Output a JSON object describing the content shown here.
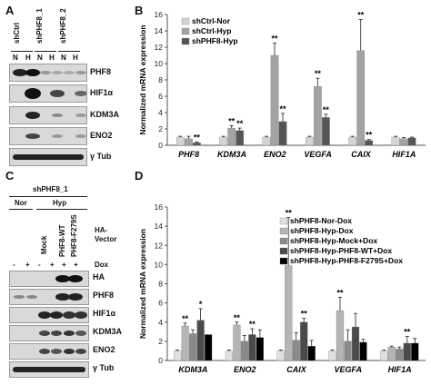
{
  "panels": {
    "a": "A",
    "b": "B",
    "c": "C",
    "d": "D"
  },
  "panel_a": {
    "groups": [
      "shCtrl",
      "shPHF8_1",
      "shPHF8_2"
    ],
    "lanes": [
      "N",
      "H",
      "N",
      "H",
      "N",
      "H"
    ],
    "blots": [
      "PHF8",
      "HIF1α",
      "KDM3A",
      "ENO2",
      "γ Tub"
    ]
  },
  "panel_c": {
    "title": "shPHF8_1",
    "conditions": [
      "Nor",
      "Hyp"
    ],
    "construct_labels": [
      "Mock",
      "PHF8-WT",
      "PHF8-F279S"
    ],
    "ha_vector": "HA-\nVector",
    "dox_label": "Dox",
    "dox_signs": [
      "-",
      "+",
      "-",
      "+",
      "+",
      "+"
    ],
    "blots": [
      "HA",
      "PHF8",
      "HIF1α",
      "KDM3A",
      "ENO2",
      "γ Tub"
    ]
  },
  "chart_data": [
    {
      "type": "bar",
      "ylabel": "Normalized mRNA expression",
      "ylim": [
        0,
        16
      ],
      "yticks": [
        0,
        2,
        4,
        6,
        8,
        10,
        12,
        14,
        16
      ],
      "categories": [
        "PHF8",
        "KDM3A",
        "ENO2",
        "VEGFA",
        "CAIX",
        "HIF1A"
      ],
      "series": [
        {
          "name": "shCtrl-Nor",
          "color": "#d4d4d4",
          "values": [
            1,
            1,
            1,
            1,
            1,
            1
          ],
          "errors": [
            0.1,
            0.1,
            0.1,
            0.1,
            0.1,
            0.1
          ]
        },
        {
          "name": "shCtrl-Hyp",
          "color": "#a3a3a3",
          "values": [
            0.8,
            2.1,
            11.0,
            7.2,
            11.6,
            0.8
          ],
          "errors": [
            0.3,
            0.3,
            1.5,
            1.0,
            3.8,
            0.15
          ]
        },
        {
          "name": "shPHF8-Hyp",
          "color": "#555555",
          "values": [
            0.3,
            1.8,
            2.9,
            3.4,
            0.6,
            0.9
          ],
          "errors": [
            0.1,
            0.3,
            1.0,
            0.4,
            0.1,
            0.1
          ]
        }
      ],
      "annotations": [
        {
          "category": "PHF8",
          "series": 2,
          "text": "**"
        },
        {
          "category": "KDM3A",
          "series": 1,
          "text": "**"
        },
        {
          "category": "KDM3A",
          "series": 2,
          "text": "**"
        },
        {
          "category": "ENO2",
          "series": 1,
          "text": "**"
        },
        {
          "category": "ENO2",
          "series": 2,
          "text": "**"
        },
        {
          "category": "VEGFA",
          "series": 1,
          "text": "**"
        },
        {
          "category": "VEGFA",
          "series": 2,
          "text": "**"
        },
        {
          "category": "CAIX",
          "series": 1,
          "text": "**"
        },
        {
          "category": "CAIX",
          "series": 2,
          "text": "**"
        }
      ],
      "legend": "top-left"
    },
    {
      "type": "bar",
      "ylabel": "Normalized mRNA expression",
      "ylim": [
        0,
        16
      ],
      "yticks": [
        0,
        2,
        4,
        6,
        8,
        10,
        12,
        14,
        16
      ],
      "categories": [
        "KDM3A",
        "ENO2",
        "CAIX",
        "VEGFA",
        "HIF1A"
      ],
      "series": [
        {
          "name": "shPHF8-Nor-Dox",
          "color": "#e0e0e0",
          "values": [
            1,
            1,
            1,
            1,
            1
          ],
          "errors": [
            0.1,
            0.1,
            0.1,
            0.1,
            0.1
          ]
        },
        {
          "name": "shPHF8-Hyp-Dox",
          "color": "#b5b5b5",
          "values": [
            3.6,
            3.7,
            9.9,
            5.2,
            1.4
          ],
          "errors": [
            0.3,
            0.3,
            5.0,
            1.4,
            0.1
          ]
        },
        {
          "name": "shPHF8-Hyp-Mock+Dox",
          "color": "#8a8a8a",
          "values": [
            2.8,
            2.0,
            2.1,
            2.0,
            1.2
          ],
          "errors": [
            0.4,
            0.6,
            0.8,
            1.2,
            0.2
          ]
        },
        {
          "name": "shPHF8-Hyp-PHF8-WT+Dox",
          "color": "#4a4a4a",
          "values": [
            4.2,
            2.7,
            4.0,
            3.5,
            1.8
          ],
          "errors": [
            1.2,
            0.6,
            0.4,
            1.4,
            0.7
          ]
        },
        {
          "name": "shPHF8-Hyp-PHF8-F279S+Dox",
          "color": "#000000",
          "values": [
            2.7,
            2.4,
            1.5,
            1.9,
            1.8
          ],
          "errors": [
            0.0,
            0.8,
            0.6,
            0.3,
            0.5
          ]
        }
      ],
      "annotations": [
        {
          "category": "KDM3A",
          "series": 1,
          "text": "**"
        },
        {
          "category": "KDM3A",
          "series": 3,
          "text": "*"
        },
        {
          "category": "ENO2",
          "series": 1,
          "text": "**"
        },
        {
          "category": "ENO2",
          "series": 3,
          "text": "**"
        },
        {
          "category": "CAIX",
          "series": 1,
          "text": "**"
        },
        {
          "category": "CAIX",
          "series": 3,
          "text": "**"
        },
        {
          "category": "VEGFA",
          "series": 1,
          "text": "**"
        },
        {
          "category": "HIF1A",
          "series": 3,
          "text": "**"
        }
      ],
      "legend": "top-left"
    }
  ]
}
